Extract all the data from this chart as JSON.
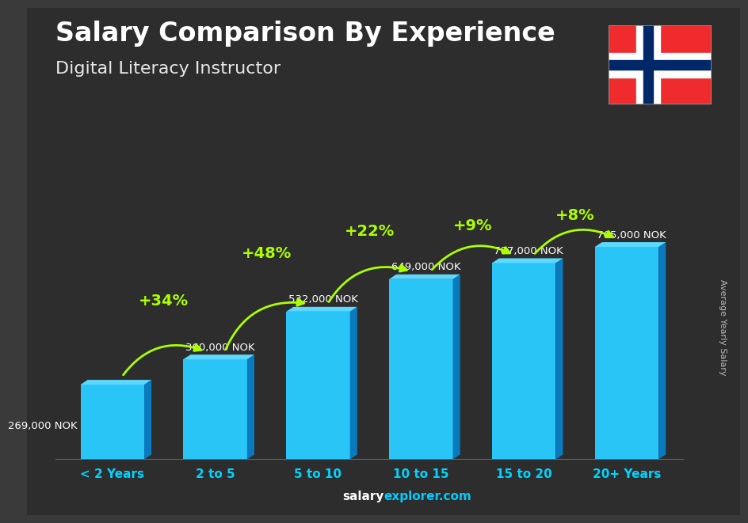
{
  "title": "Salary Comparison By Experience",
  "subtitle": "Digital Literacy Instructor",
  "categories": [
    "< 2 Years",
    "2 to 5",
    "5 to 10",
    "10 to 15",
    "15 to 20",
    "20+ Years"
  ],
  "values": [
    269000,
    360000,
    532000,
    649000,
    707000,
    765000
  ],
  "labels": [
    "269,000 NOK",
    "360,000 NOK",
    "532,000 NOK",
    "649,000 NOK",
    "707,000 NOK",
    "765,000 NOK"
  ],
  "pct_changes": [
    "+34%",
    "+48%",
    "+22%",
    "+9%",
    "+8%"
  ],
  "bar_face_color": "#29c5f6",
  "bar_side_color": "#0a7abf",
  "bar_top_color": "#5dd9ff",
  "bg_color": "#3a3a3a",
  "title_color": "#ffffff",
  "subtitle_color": "#e0e0e0",
  "label_color": "#ffffff",
  "pct_color": "#aaff00",
  "cat_color": "#00d4ff",
  "ylabel": "Average Yearly Salary",
  "footer_salary": "salary",
  "footer_explorer": "explorer.com",
  "ylim": [
    0,
    950000
  ],
  "flag_red": "#EF2B2D",
  "flag_blue": "#002868"
}
